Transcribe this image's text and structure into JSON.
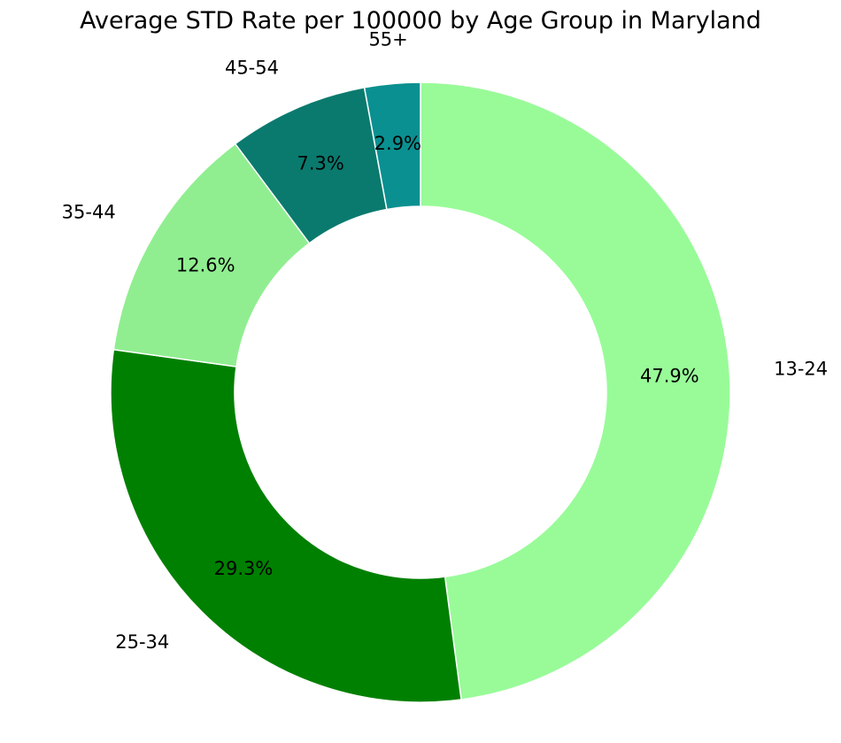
{
  "chart_data": {
    "type": "pie",
    "style": "donut",
    "title": "Average STD Rate per 100000 by Age Group in Maryland",
    "categories": [
      "13-24",
      "25-34",
      "35-44",
      "45-54",
      "55+"
    ],
    "values": [
      47.9,
      29.3,
      12.6,
      7.3,
      2.9
    ],
    "percent_labels": [
      "47.9%",
      "29.3%",
      "12.6%",
      "7.3%",
      "2.9%"
    ],
    "colors": [
      "#98fb98",
      "#008000",
      "#90ee90",
      "#0a7a6e",
      "#0a9090"
    ],
    "start_angle": "top",
    "direction": "clockwise",
    "legend": "none"
  }
}
